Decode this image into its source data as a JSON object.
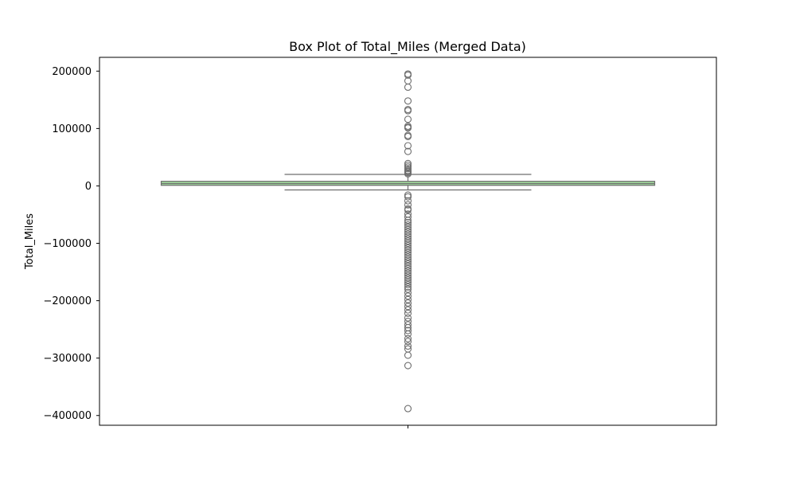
{
  "chart_data": {
    "type": "box",
    "title": "Box Plot of Total_Miles (Merged Data)",
    "xlabel": "",
    "ylabel": "Total_Miles",
    "ylim": [
      -417000,
      224000
    ],
    "yticks": [
      200000,
      100000,
      0,
      -100000,
      -200000,
      -300000,
      -400000
    ],
    "ytick_labels": [
      "200000",
      "100000",
      "0",
      "−100000",
      "−200000",
      "−300000",
      "−400000"
    ],
    "xtick_count": 1,
    "grid": false,
    "box": {
      "q1": 1000,
      "median": 4000,
      "q3": 8000,
      "whisker_low": -7000,
      "whisker_high": 20000,
      "fill_color": "#9fd59b",
      "edge_color": "#6e6e6e"
    },
    "outliers": [
      195000,
      193000,
      183000,
      172000,
      148000,
      133000,
      131000,
      116000,
      104000,
      102000,
      101000,
      88000,
      86000,
      70000,
      60000,
      39000,
      36000,
      33000,
      30000,
      27000,
      25000,
      23000,
      21000,
      -16000,
      -19000,
      -26000,
      -33000,
      -40000,
      -42000,
      -49000,
      -54000,
      -60000,
      -64000,
      -68000,
      -72000,
      -76000,
      -80000,
      -84000,
      -88000,
      -92000,
      -96000,
      -100000,
      -104000,
      -108000,
      -112000,
      -116000,
      -120000,
      -124000,
      -128000,
      -132000,
      -136000,
      -140000,
      -144000,
      -148000,
      -152000,
      -156000,
      -160000,
      -164000,
      -168000,
      -172000,
      -176000,
      -180000,
      -186000,
      -192000,
      -198000,
      -204000,
      -210000,
      -216000,
      -222000,
      -230000,
      -236000,
      -242000,
      -247000,
      -252000,
      -258000,
      -266000,
      -271000,
      -279000,
      -284000,
      -295000,
      -313000,
      -388000
    ]
  }
}
